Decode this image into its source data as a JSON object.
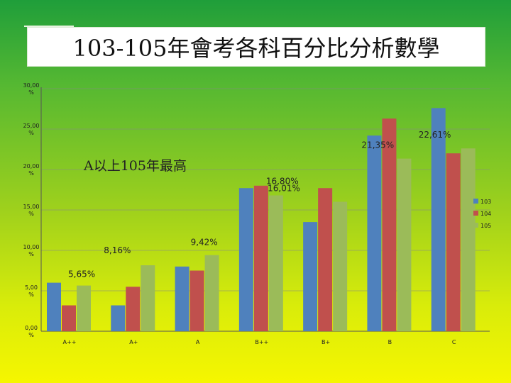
{
  "title": "103-105年會考各科百分比分析數學",
  "annotation": "A以上105年最高",
  "colors": {
    "s103": "#4f81bd",
    "s104": "#c0504d",
    "s105": "#9bbb59",
    "axis": "#555555",
    "grid": "#888888"
  },
  "chart_data": {
    "type": "bar",
    "title": "103-105年會考各科百分比分析數學",
    "xlabel": "",
    "ylabel": "",
    "categories": [
      "A++",
      "A+",
      "A",
      "B++",
      "B+",
      "B",
      "C"
    ],
    "ylim": [
      0,
      30
    ],
    "yticks": [
      0,
      5,
      10,
      15,
      20,
      25,
      30
    ],
    "ytick_labels": [
      "0,00\n%",
      "5,00\n%",
      "10,00\n%",
      "15,00\n%",
      "20,00\n%",
      "25,00\n%",
      "30,00\n%"
    ],
    "grid": true,
    "legend": "right",
    "series": [
      {
        "name": "103",
        "values": [
          6.0,
          3.2,
          8.0,
          17.7,
          13.5,
          24.2,
          27.6
        ]
      },
      {
        "name": "104",
        "values": [
          3.2,
          5.5,
          7.5,
          18.0,
          17.7,
          26.3,
          22.0
        ]
      },
      {
        "name": "105",
        "values": [
          5.65,
          8.16,
          9.42,
          16.8,
          16.01,
          21.35,
          22.61
        ]
      }
    ],
    "data_labels": [
      {
        "text": "5,65%",
        "category": "A++",
        "series": "105"
      },
      {
        "text": "8,16%",
        "category": "A+",
        "series": "105"
      },
      {
        "text": "9,42%",
        "category": "A",
        "series": "105"
      },
      {
        "text": "16,80%",
        "category": "B++",
        "series": "105"
      },
      {
        "text": "16,01%",
        "category": "B+",
        "series": "105"
      },
      {
        "text": "21,35%",
        "category": "B",
        "series": "105"
      },
      {
        "text": "22,61%",
        "category": "C",
        "series": "105"
      }
    ]
  }
}
